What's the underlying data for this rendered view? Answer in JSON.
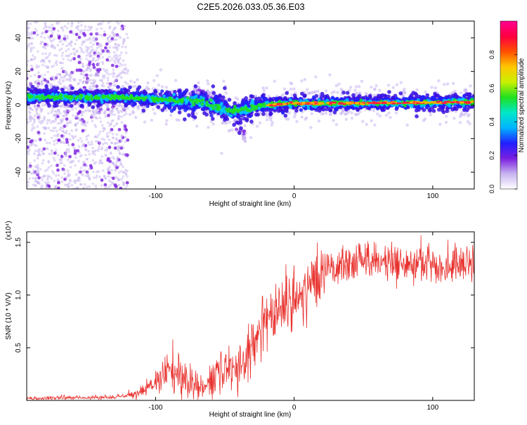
{
  "title": "C2E5.2026.033.05.36.E03",
  "chart_data": [
    {
      "type": "heatmap",
      "name": "spectrogram",
      "xlabel": "Height of straight line (km)",
      "ylabel": "Frequency (Hz)",
      "xlim": [
        -193,
        130
      ],
      "ylim": [
        -50,
        50
      ],
      "x_ticks": [
        -100,
        0,
        100
      ],
      "x_tick_labels": [
        "-100",
        "0",
        "100"
      ],
      "y_ticks": [
        -40,
        -20,
        0,
        20,
        40
      ],
      "y_tick_labels": [
        "-40",
        "-20",
        "0",
        "20",
        "40"
      ],
      "ridge": {
        "description": "dominant frequency ridge (Hz) vs height (km)",
        "x": [
          -193,
          -150,
          -120,
          -100,
          -80,
          -65,
          -55,
          -45,
          -38,
          -30,
          -20,
          -10,
          0,
          10,
          30,
          60,
          100,
          130
        ],
        "y": [
          5,
          4.5,
          4.5,
          3.5,
          2.5,
          1.5,
          -1.5,
          -4,
          -3.5,
          -1.5,
          0,
          0.5,
          1,
          1,
          1,
          1.2,
          1.5,
          1.8
        ]
      },
      "noise_region_x": [
        -193,
        -120
      ],
      "side_branch": {
        "x": [
          -75,
          -62,
          -50,
          -40,
          -35
        ],
        "y": [
          9,
          6,
          0,
          -13,
          -20
        ]
      }
    },
    {
      "type": "line",
      "name": "snr",
      "xlabel": "Height of straight line (km)",
      "ylabel": "SNR (10 * V/V)",
      "multiplier_label": "(x10⁴)",
      "xlim": [
        -193,
        130
      ],
      "ylim": [
        0,
        1.6
      ],
      "x_ticks": [
        -100,
        0,
        100
      ],
      "x_tick_labels": [
        "-100",
        "0",
        "100"
      ],
      "y_ticks": [
        0.5,
        1.0,
        1.5
      ],
      "y_tick_labels": [
        "0.5",
        "1.0",
        "1.5"
      ],
      "series": [
        {
          "name": "SNR",
          "color": "#e8322e",
          "envelope_x": [
            -193,
            -130,
            -115,
            -105,
            -95,
            -85,
            -75,
            -65,
            -55,
            -45,
            -35,
            -30,
            -25,
            -15,
            -5,
            5,
            15,
            25,
            40,
            60,
            80,
            100,
            115,
            130
          ],
          "envelope_mean": [
            0.02,
            0.03,
            0.06,
            0.12,
            0.22,
            0.28,
            0.18,
            0.13,
            0.26,
            0.3,
            0.32,
            0.55,
            0.7,
            0.78,
            0.9,
            1.0,
            1.12,
            1.28,
            1.3,
            1.32,
            1.3,
            1.3,
            1.28,
            1.28
          ]
        }
      ]
    }
  ],
  "colorbar": {
    "label": "Normalized spectral amplitude",
    "range": [
      0,
      1
    ],
    "ticks": [
      0.0,
      0.2,
      0.4,
      0.6,
      0.8
    ],
    "tick_labels": [
      "0.0",
      "0.2",
      "0.4",
      "0.6",
      "0.8"
    ],
    "colors": [
      "#ffffff",
      "#c8b4f0",
      "#7a1fe0",
      "#2020ff",
      "#00b4ff",
      "#00e8c8",
      "#20e020",
      "#c8f000",
      "#ffc800",
      "#ff5000",
      "#ff0040",
      "#ff0090"
    ]
  }
}
